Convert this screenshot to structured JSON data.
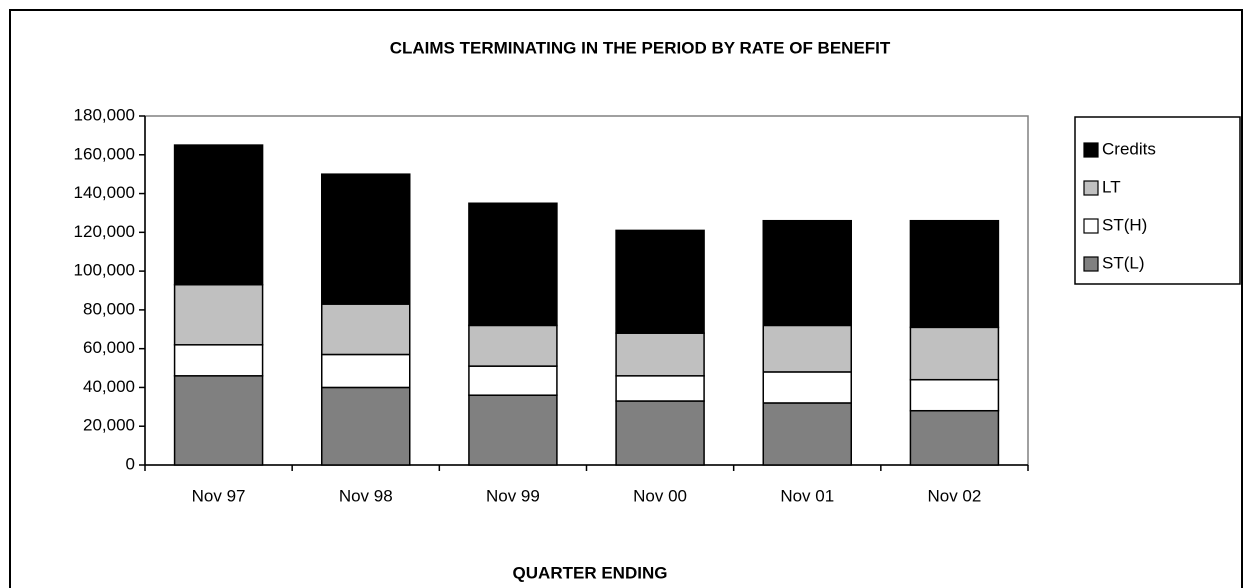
{
  "chart_data": {
    "type": "stacked_bar",
    "title": "CLAIMS TERMINATING IN THE PERIOD BY RATE OF BENEFIT",
    "x_label": "QUARTER ENDING",
    "categories": [
      "Nov 97",
      "Nov 98",
      "Nov 99",
      "Nov 00",
      "Nov 01",
      "Nov 02"
    ],
    "series": [
      {
        "name": "ST(L)",
        "color": "#808080",
        "values": [
          46000,
          40000,
          36000,
          33000,
          32000,
          28000
        ]
      },
      {
        "name": "ST(H)",
        "color": "#ffffff",
        "values": [
          16000,
          17000,
          15000,
          13000,
          16000,
          16000
        ]
      },
      {
        "name": "LT",
        "color": "#c0c0c0",
        "values": [
          31000,
          26000,
          21000,
          22000,
          24000,
          27000
        ]
      },
      {
        "name": "Credits",
        "color": "#000000",
        "values": [
          72000,
          67000,
          63000,
          53000,
          54000,
          55000
        ]
      }
    ],
    "ylim": [
      0,
      180000
    ],
    "yticks": [
      0,
      {
        "value": 20000,
        "label": "20,000"
      },
      {
        "value": 40000,
        "label": "40,000"
      },
      {
        "value": 60000,
        "label": "60,000"
      },
      {
        "value": 80000,
        "label": "80,000"
      },
      {
        "value": 100000,
        "label": "100,000"
      },
      {
        "value": 120000,
        "label": "120,000"
      },
      {
        "value": 140000,
        "label": "140,000"
      },
      {
        "value": 160000,
        "label": "160,000"
      },
      {
        "value": 180000,
        "label": "180,000"
      }
    ],
    "legend": "right"
  }
}
